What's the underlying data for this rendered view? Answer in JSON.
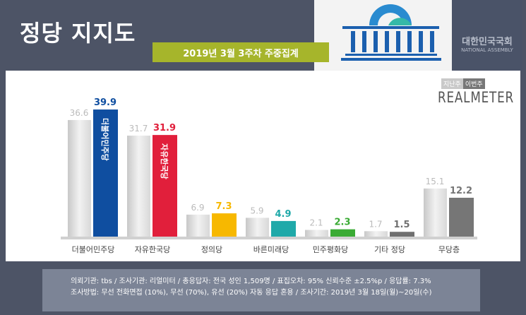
{
  "header": {
    "title": "정당 지지도",
    "banner": "2019년 3월 3주차 주중집계",
    "assembly_ko": "대한민국국회",
    "assembly_en": "NATIONAL ASSEMBLY"
  },
  "legend": {
    "prev": "지난주",
    "curr": "이번주"
  },
  "brand": "REALMETER",
  "chart_data": {
    "type": "bar",
    "categories": [
      "더불어민주당",
      "자유한국당",
      "정의당",
      "바른미래당",
      "민주평화당",
      "기타 정당",
      "무당층"
    ],
    "series": [
      {
        "name": "지난주",
        "values": [
          36.6,
          31.7,
          6.9,
          5.9,
          2.1,
          1.7,
          15.1
        ]
      },
      {
        "name": "이번주",
        "values": [
          39.9,
          31.9,
          7.3,
          4.9,
          2.3,
          1.5,
          12.2
        ]
      }
    ],
    "colors": [
      "#0f4ea0",
      "#e11f3b",
      "#f7b800",
      "#1fa9a9",
      "#3aab34",
      "#6f6f6f",
      "#767676"
    ],
    "bar_logo_text": [
      "더불어민주당",
      "자유한국당"
    ],
    "ylim": [
      0,
      42
    ]
  },
  "footer": {
    "line1": "의뢰기관: tbs / 조사기관: 리얼미터 / 총응답자: 전국 성인 1,509명 / 표집오차: 95% 신뢰수준 ±2.5%p / 응답률: 7.3%",
    "line2": "조사방법: 무선 전화면접 (10%), 무선 (70%), 유선 (20%) 자동 응답 혼용 / 조사기간: 2019년 3월 18일(월)~20일(수)"
  }
}
